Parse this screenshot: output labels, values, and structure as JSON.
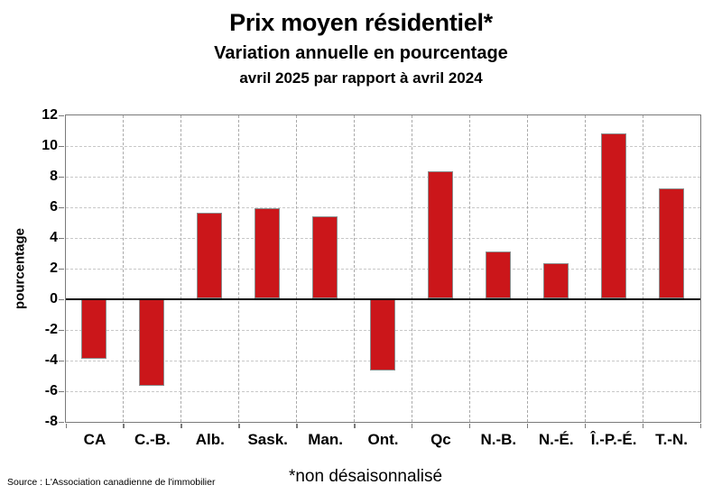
{
  "page": {
    "title": "Prix moyen résidentiel*",
    "subtitle": "Variation annuelle en pourcentage",
    "period": "avril 2025 par rapport à avril 2024",
    "source": "Source : L'Association canadienne de l'immobilier",
    "footnote": "*non désaisonnalisé"
  },
  "chart_data": {
    "type": "bar",
    "title": "Prix moyen résidentiel*",
    "subtitle": "Variation annuelle en pourcentage",
    "period_note": "avril 2025 par rapport à avril 2024",
    "categories": [
      "CA",
      "C.-B.",
      "Alb.",
      "Sask.",
      "Man.",
      "Ont.",
      "Qc",
      "N.-B.",
      "N.-É.",
      "Î.-P.-É.",
      "T.-N."
    ],
    "values": [
      -3.9,
      -5.7,
      5.6,
      5.9,
      5.4,
      -4.7,
      8.3,
      3.1,
      2.3,
      10.8,
      7.2
    ],
    "xlabel": "",
    "ylabel": "pourcentage",
    "ylim": [
      -8,
      12
    ],
    "ytick_step": 2,
    "grid": "dashed horizontal gridlines every 2 units, dashed vertical category separators",
    "legend": "none",
    "colors": {
      "bar_fill": "#CB161A",
      "bar_border": "#8c8c8c",
      "zero_line": "#000000",
      "plot_border": "#7a7a7a",
      "gridline_h": "#c8c8c8",
      "gridline_v": "#a9a9a9"
    }
  }
}
